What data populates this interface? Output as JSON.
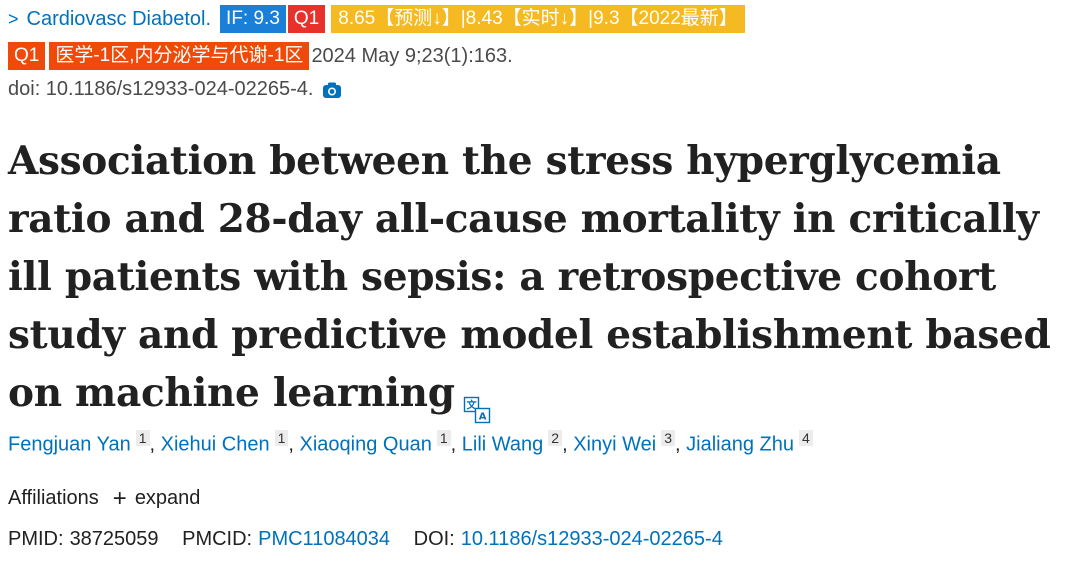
{
  "citation": {
    "journal": "Cardiovasc Diabetol.",
    "if_badge": "IF: 9.3",
    "q1_badge": "Q1",
    "prediction_badge": "8.65【预测↓】|8.43【实时↓】|9.3【2022最新】",
    "q1_badge_2": "Q1",
    "zone_badge": "医学-1区,内分泌学与代谢-1区",
    "date_volume": "2024 May 9;23(1):163.",
    "doi_line": "doi: 10.1186/s12933-024-02265-4."
  },
  "article": {
    "title": "Association between the stress hyperglycemia ratio and 28-day all-cause mortality in critically ill patients with sepsis: a retrospective cohort study and predictive model establishment based on machine learning"
  },
  "authors": [
    {
      "name": "Fengjuan Yan",
      "aff": "1"
    },
    {
      "name": "Xiehui Chen",
      "aff": "1"
    },
    {
      "name": "Xiaoqing Quan",
      "aff": "1"
    },
    {
      "name": "Lili Wang",
      "aff": "2"
    },
    {
      "name": "Xinyi Wei",
      "aff": "3"
    },
    {
      "name": "Jialiang Zhu",
      "aff": "4"
    }
  ],
  "affiliations": {
    "label": "Affiliations",
    "expand_label": "expand"
  },
  "identifiers": {
    "pmid_label": "PMID:",
    "pmid": "38725059",
    "pmcid_label": "PMCID:",
    "pmcid": "PMC11084034",
    "doi_label": "DOI:",
    "doi": "10.1186/s12933-024-02265-4"
  },
  "colors": {
    "link": "#0071bc",
    "if_badge": "#1a7fd6",
    "q1_badge": "#e8312a",
    "prediction_badge": "#f5b921",
    "zone_badge": "#f04a0a"
  },
  "icons": [
    "chevron-right-icon",
    "camera-icon",
    "translate-icon",
    "plus-icon"
  ]
}
